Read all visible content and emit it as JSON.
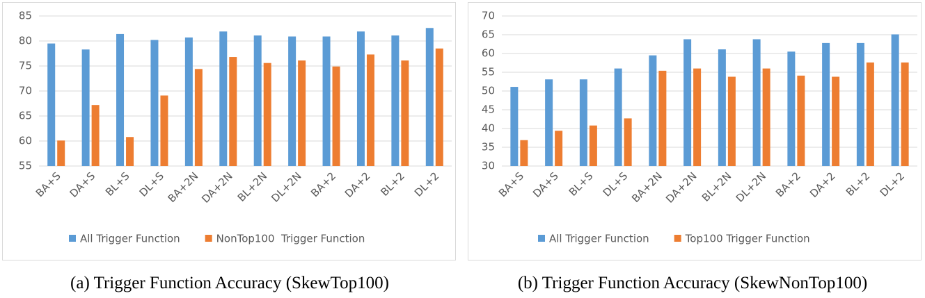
{
  "chart_data": [
    {
      "type": "bar",
      "caption": "(a) Trigger Function Accuracy (SkewTop100)",
      "categories": [
        "BA+S",
        "DA+S",
        "BL+S",
        "DL+S",
        "BA+2N",
        "DA+2N",
        "BL+2N",
        "DL+2N",
        "BA+2",
        "DA+2",
        "BL+2",
        "DL+2"
      ],
      "series": [
        {
          "name": "All Trigger Function",
          "color": "#5b9bd5",
          "values": [
            79.5,
            78.3,
            81.4,
            80.2,
            80.7,
            81.9,
            81.1,
            80.9,
            80.9,
            81.9,
            81.1,
            82.6
          ]
        },
        {
          "name": "NonTop100  Trigger Function",
          "color": "#ed7d31",
          "values": [
            60.1,
            67.2,
            60.8,
            69.1,
            74.4,
            76.8,
            75.6,
            76.1,
            74.9,
            77.3,
            76.1,
            78.5
          ]
        }
      ],
      "ylim": [
        55,
        85
      ],
      "yticks": [
        55,
        60,
        65,
        70,
        75,
        80,
        85
      ],
      "grid": true
    },
    {
      "type": "bar",
      "caption": "(b) Trigger Function Accuracy (SkewNonTop100)",
      "categories": [
        "BA+S",
        "DA+S",
        "BL+S",
        "DL+S",
        "BA+2N",
        "DA+2N",
        "BL+2N",
        "DL+2N",
        "BA+2",
        "DA+2",
        "BL+2",
        "DL+2"
      ],
      "series": [
        {
          "name": "All Trigger Function",
          "color": "#5b9bd5",
          "values": [
            51.1,
            53.1,
            53.1,
            56.0,
            59.5,
            63.8,
            61.1,
            63.8,
            60.5,
            62.8,
            62.8,
            65.1
          ]
        },
        {
          "name": "Top100 Trigger Function",
          "color": "#ed7d31",
          "values": [
            36.9,
            39.4,
            40.8,
            42.7,
            55.4,
            56.0,
            53.8,
            56.0,
            54.1,
            53.8,
            57.6,
            57.6
          ]
        }
      ],
      "ylim": [
        30,
        70
      ],
      "yticks": [
        30,
        35,
        40,
        45,
        50,
        55,
        60,
        65,
        70
      ],
      "grid": true
    }
  ]
}
